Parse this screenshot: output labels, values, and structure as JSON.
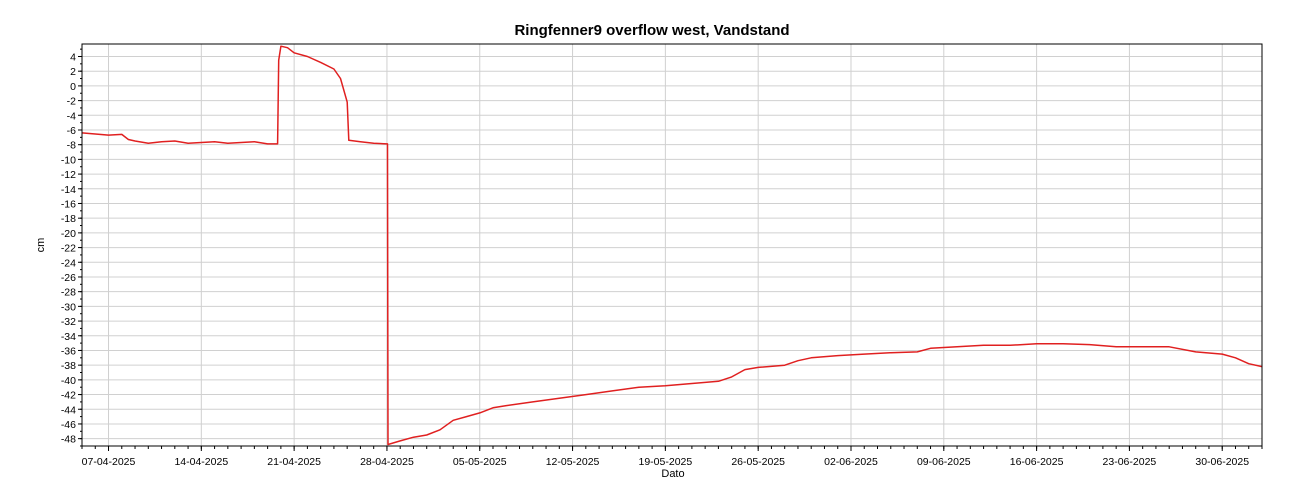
{
  "chart_data": {
    "type": "line",
    "title": "Ringfenner9 overflow west, Vandstand",
    "xlabel": "Dato",
    "ylabel": "cm",
    "x_range": [
      "2025-04-05",
      "2025-07-03"
    ],
    "ylim": [
      -49,
      5.7
    ],
    "y_ticks": [
      4,
      2,
      0,
      -2,
      -4,
      -6,
      -8,
      -10,
      -12,
      -14,
      -16,
      -18,
      -20,
      -22,
      -24,
      -26,
      -28,
      -30,
      -32,
      -34,
      -36,
      -38,
      -40,
      -42,
      -44,
      -46,
      -48
    ],
    "x_tick_labels": [
      "07-04-2025",
      "14-04-2025",
      "21-04-2025",
      "28-04-2025",
      "05-05-2025",
      "12-05-2025",
      "19-05-2025",
      "26-05-2025",
      "02-06-2025",
      "09-06-2025",
      "16-06-2025",
      "23-06-2025",
      "30-06-2025"
    ],
    "grid": true,
    "series": [
      {
        "color": "#e02020",
        "points": [
          [
            "2025-04-05",
            -6.4
          ],
          [
            "2025-04-07",
            -6.7
          ],
          [
            "2025-04-08",
            -6.6
          ],
          [
            "2025-04-08T12:00",
            -7.3
          ],
          [
            "2025-04-09",
            -7.5
          ],
          [
            "2025-04-10",
            -7.8
          ],
          [
            "2025-04-11",
            -7.6
          ],
          [
            "2025-04-12",
            -7.5
          ],
          [
            "2025-04-13",
            -7.8
          ],
          [
            "2025-04-14",
            -7.7
          ],
          [
            "2025-04-15",
            -7.6
          ],
          [
            "2025-04-16",
            -7.8
          ],
          [
            "2025-04-17",
            -7.7
          ],
          [
            "2025-04-18",
            -7.6
          ],
          [
            "2025-04-19",
            -7.9
          ],
          [
            "2025-04-19T18:00",
            -7.9
          ],
          [
            "2025-04-19T20:00",
            3.5
          ],
          [
            "2025-04-20",
            5.4
          ],
          [
            "2025-04-20T12:00",
            5.2
          ],
          [
            "2025-04-21",
            4.5
          ],
          [
            "2025-04-22",
            4.0
          ],
          [
            "2025-04-23",
            3.2
          ],
          [
            "2025-04-24",
            2.3
          ],
          [
            "2025-04-24T12:00",
            1.0
          ],
          [
            "2025-04-25",
            -2.2
          ],
          [
            "2025-04-25T03:00",
            -7.4
          ],
          [
            "2025-04-26",
            -7.6
          ],
          [
            "2025-04-27",
            -7.8
          ],
          [
            "2025-04-28",
            -7.9
          ],
          [
            "2025-04-28T01:00",
            -7.9
          ],
          [
            "2025-04-28T02:00",
            -48.8
          ],
          [
            "2025-04-29",
            -48.3
          ],
          [
            "2025-04-30",
            -47.8
          ],
          [
            "2025-05-01",
            -47.5
          ],
          [
            "2025-05-02",
            -46.8
          ],
          [
            "2025-05-03",
            -45.5
          ],
          [
            "2025-05-04",
            -45.0
          ],
          [
            "2025-05-05",
            -44.5
          ],
          [
            "2025-05-06",
            -43.8
          ],
          [
            "2025-05-07",
            -43.5
          ],
          [
            "2025-05-09",
            -43.0
          ],
          [
            "2025-05-11",
            -42.5
          ],
          [
            "2025-05-13",
            -42.0
          ],
          [
            "2025-05-15",
            -41.5
          ],
          [
            "2025-05-17",
            -41.0
          ],
          [
            "2025-05-19",
            -40.8
          ],
          [
            "2025-05-21",
            -40.5
          ],
          [
            "2025-05-23",
            -40.2
          ],
          [
            "2025-05-24",
            -39.6
          ],
          [
            "2025-05-25",
            -38.6
          ],
          [
            "2025-05-26",
            -38.3
          ],
          [
            "2025-05-28",
            -38.0
          ],
          [
            "2025-05-29",
            -37.4
          ],
          [
            "2025-05-30",
            -37.0
          ],
          [
            "2025-06-01",
            -36.7
          ],
          [
            "2025-06-03",
            -36.5
          ],
          [
            "2025-06-05",
            -36.3
          ],
          [
            "2025-06-07",
            -36.2
          ],
          [
            "2025-06-08",
            -35.7
          ],
          [
            "2025-06-10",
            -35.5
          ],
          [
            "2025-06-12",
            -35.3
          ],
          [
            "2025-06-14",
            -35.3
          ],
          [
            "2025-06-16",
            -35.1
          ],
          [
            "2025-06-18",
            -35.1
          ],
          [
            "2025-06-20",
            -35.2
          ],
          [
            "2025-06-22",
            -35.5
          ],
          [
            "2025-06-24",
            -35.5
          ],
          [
            "2025-06-26",
            -35.5
          ],
          [
            "2025-06-28",
            -36.2
          ],
          [
            "2025-06-30",
            -36.5
          ],
          [
            "2025-07-01",
            -37.0
          ],
          [
            "2025-07-02",
            -37.8
          ],
          [
            "2025-07-03",
            -38.2
          ]
        ]
      }
    ]
  }
}
